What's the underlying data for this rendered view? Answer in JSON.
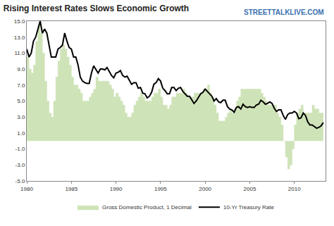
{
  "chart_data": {
    "type": "line",
    "title": "Rising Interest Rates Slows Economic Growth",
    "annotations": [
      "STREETTALKLIVE.COM"
    ],
    "x": [
      1980,
      1980.25,
      1980.5,
      1980.75,
      1981,
      1981.25,
      1981.5,
      1981.75,
      1982,
      1982.25,
      1982.5,
      1982.75,
      1983,
      1983.25,
      1983.5,
      1983.75,
      1984,
      1984.25,
      1984.5,
      1984.75,
      1985,
      1985.25,
      1985.5,
      1985.75,
      1986,
      1986.25,
      1986.5,
      1986.75,
      1987,
      1987.25,
      1987.5,
      1987.75,
      1988,
      1988.25,
      1988.5,
      1988.75,
      1989,
      1989.25,
      1989.5,
      1989.75,
      1990,
      1990.25,
      1990.5,
      1990.75,
      1991,
      1991.25,
      1991.5,
      1991.75,
      1992,
      1992.25,
      1992.5,
      1992.75,
      1993,
      1993.25,
      1993.5,
      1993.75,
      1994,
      1994.25,
      1994.5,
      1994.75,
      1995,
      1995.25,
      1995.5,
      1995.75,
      1996,
      1996.25,
      1996.5,
      1996.75,
      1997,
      1997.25,
      1997.5,
      1997.75,
      1998,
      1998.25,
      1998.5,
      1998.75,
      1999,
      1999.25,
      1999.5,
      1999.75,
      2000,
      2000.25,
      2000.5,
      2000.75,
      2001,
      2001.25,
      2001.5,
      2001.75,
      2002,
      2002.25,
      2002.5,
      2002.75,
      2003,
      2003.25,
      2003.5,
      2003.75,
      2004,
      2004.25,
      2004.5,
      2004.75,
      2005,
      2005.25,
      2005.5,
      2005.75,
      2006,
      2006.25,
      2006.5,
      2006.75,
      2007,
      2007.25,
      2007.5,
      2007.75,
      2008,
      2008.25,
      2008.5,
      2008.75,
      2009,
      2009.25,
      2009.5,
      2009.75,
      2010,
      2010.25,
      2010.5,
      2010.75,
      2011,
      2011.25,
      2011.5,
      2011.75,
      2012,
      2012.25,
      2012.5,
      2012.75,
      2013,
      2013.25
    ],
    "series": [
      {
        "name": "Gross Domestic Product, 1 Decimal",
        "type": "area",
        "color": "#cfe3b8",
        "values": [
          10.5,
          9.0,
          8.5,
          9.5,
          12.5,
          14.5,
          13.5,
          11.0,
          7.5,
          5.0,
          3.5,
          3.0,
          5.0,
          8.0,
          10.0,
          11.5,
          12.0,
          11.5,
          10.5,
          9.5,
          8.0,
          7.0,
          7.0,
          6.5,
          6.0,
          5.0,
          5.0,
          5.0,
          5.5,
          6.0,
          6.5,
          8.0,
          7.5,
          7.5,
          7.5,
          7.5,
          7.5,
          7.0,
          6.5,
          5.5,
          6.0,
          5.5,
          5.0,
          4.5,
          3.5,
          3.0,
          3.0,
          3.5,
          4.5,
          5.0,
          5.5,
          6.0,
          5.5,
          5.0,
          5.0,
          5.0,
          5.5,
          6.0,
          6.0,
          6.5,
          5.5,
          4.5,
          4.5,
          4.0,
          4.5,
          5.5,
          5.5,
          6.0,
          6.0,
          6.0,
          6.5,
          6.0,
          5.5,
          5.5,
          5.5,
          6.0,
          6.0,
          6.0,
          6.0,
          6.5,
          6.5,
          7.0,
          6.0,
          5.5,
          4.5,
          3.5,
          2.5,
          2.5,
          2.5,
          3.0,
          3.5,
          4.0,
          3.5,
          4.0,
          5.0,
          5.5,
          6.5,
          6.5,
          6.5,
          6.5,
          6.5,
          6.5,
          6.5,
          6.5,
          6.5,
          6.0,
          5.5,
          5.0,
          4.5,
          4.5,
          4.5,
          4.5,
          3.5,
          3.0,
          2.0,
          0.0,
          -2.0,
          -3.5,
          -3.0,
          -1.0,
          2.0,
          3.5,
          4.0,
          4.5,
          3.5,
          3.5,
          3.5,
          3.5,
          4.5,
          4.0,
          4.0,
          3.5,
          3.5,
          3.0
        ]
      },
      {
        "name": "10-Yr Treasury Rate",
        "type": "line",
        "color": "#000000",
        "values": [
          11.5,
          10.5,
          11.0,
          12.5,
          13.0,
          14.0,
          15.0,
          13.5,
          14.0,
          13.5,
          12.0,
          10.5,
          10.5,
          10.5,
          11.5,
          11.7,
          12.0,
          13.5,
          12.5,
          11.7,
          11.5,
          10.5,
          10.5,
          9.5,
          8.0,
          7.5,
          7.3,
          7.2,
          7.2,
          8.5,
          9.4,
          9.0,
          8.5,
          9.0,
          9.0,
          8.9,
          9.2,
          8.7,
          8.2,
          7.9,
          8.5,
          8.6,
          8.8,
          8.2,
          8.0,
          8.1,
          7.6,
          7.1,
          7.3,
          7.3,
          6.6,
          6.7,
          6.0,
          5.9,
          5.4,
          5.6,
          6.1,
          7.1,
          7.3,
          7.8,
          7.5,
          6.6,
          6.3,
          5.9,
          5.9,
          6.7,
          6.7,
          6.3,
          6.6,
          6.7,
          6.2,
          5.9,
          5.6,
          5.6,
          5.2,
          4.7,
          5.0,
          5.5,
          5.9,
          6.1,
          6.5,
          6.2,
          5.9,
          5.6,
          5.0,
          5.3,
          4.9,
          4.8,
          5.1,
          5.1,
          4.3,
          4.0,
          3.9,
          3.6,
          4.2,
          4.3,
          4.0,
          4.6,
          4.3,
          4.2,
          4.3,
          4.2,
          4.2,
          4.5,
          4.6,
          5.1,
          4.9,
          4.6,
          4.7,
          4.9,
          4.7,
          4.1,
          3.7,
          3.9,
          3.9,
          3.2,
          2.7,
          3.3,
          3.5,
          3.5,
          3.7,
          3.5,
          2.8,
          2.9,
          3.5,
          3.2,
          2.4,
          2.0,
          2.0,
          1.8,
          1.6,
          1.7,
          1.9,
          2.3
        ]
      }
    ],
    "xlim": [
      1980,
      2013.5
    ],
    "xticks": [
      1980,
      1985,
      1990,
      1995,
      2000,
      2005,
      2010
    ],
    "ylim": [
      -5,
      15
    ],
    "yticks": [
      {
        "value": -5,
        "label": "-5.0"
      },
      {
        "value": -3,
        "label": "-3.0"
      },
      {
        "value": -1,
        "label": "-1.0"
      },
      {
        "value": 1,
        "label": "1.0"
      },
      {
        "value": 3,
        "label": "3.0"
      },
      {
        "value": 5,
        "label": "5.0"
      },
      {
        "value": 7,
        "label": "7.0"
      },
      {
        "value": 9,
        "label": "9.0"
      },
      {
        "value": 11,
        "label": "11.0"
      },
      {
        "value": 13,
        "label": "13.0"
      },
      {
        "value": 15,
        "label": "15.0"
      }
    ],
    "grid": false,
    "legend": "bottom"
  }
}
